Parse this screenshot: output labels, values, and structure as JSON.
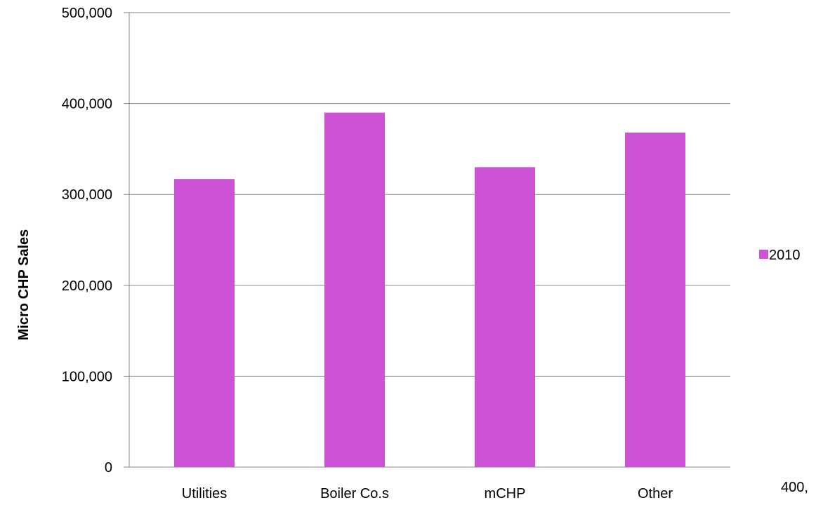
{
  "chart_data": {
    "type": "bar",
    "title": "",
    "xlabel": "",
    "ylabel": "Micro CHP Sales",
    "categories": [
      "Utilities",
      "Boiler Co.s",
      "mCHP",
      "Other"
    ],
    "series": [
      {
        "name": "2010",
        "values": [
          317000,
          390000,
          330000,
          368000
        ],
        "color": "#CC52D6"
      }
    ],
    "ylim": [
      0,
      500000
    ],
    "yticks": [
      0,
      100000,
      200000,
      300000,
      400000,
      500000
    ],
    "ytick_labels": [
      "0",
      "100,000",
      "200,000",
      "300,000",
      "400,000",
      "500,000"
    ],
    "grid": true,
    "legend_position": "right"
  },
  "stray_text": "400,"
}
